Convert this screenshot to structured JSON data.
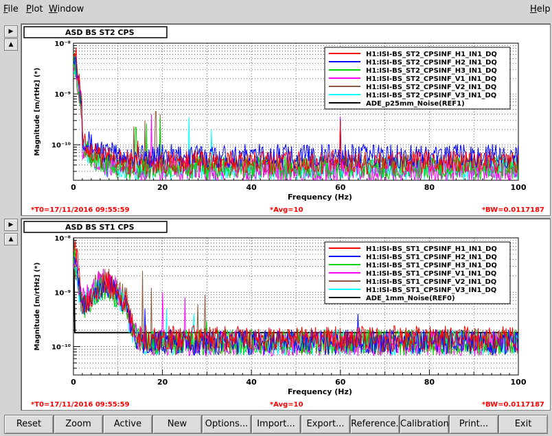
{
  "menu": {
    "file": "File",
    "plot": "Plot",
    "window": "Window",
    "help": "Help"
  },
  "side_buttons": {
    "expand": "▶",
    "collapse": "▲"
  },
  "colors": {
    "red": "#ff0000",
    "blue": "#0000ff",
    "green": "#00d200",
    "magenta": "#ff00ff",
    "brown": "#8b5a3c",
    "cyan": "#00ffff",
    "black": "#000000",
    "status_red": "#ff0000"
  },
  "footer_buttons": [
    "Reset",
    "Zoom",
    "Active",
    "New",
    "Options...",
    "Import...",
    "Export...",
    "Reference...",
    "Calibration...",
    "Print...",
    "Exit"
  ],
  "chart_data": [
    {
      "type": "line",
      "title": "ASD BS ST2 CPS",
      "xlabel": "Frequency (Hz)",
      "ylabel": "Magnitude [m/rtHz] (*)",
      "xlim": [
        0,
        100
      ],
      "ylim": [
        2e-11,
        1e-08
      ],
      "yscale": "log",
      "grid": true,
      "legend_position": "top-right",
      "x_ticks": [
        "0",
        "20",
        "40",
        "60",
        "80",
        "100"
      ],
      "y_ticks": [
        "10⁻⁸",
        "10⁻⁹",
        "10⁻¹⁰"
      ],
      "status": {
        "t0": "*T0=17/11/2016 09:55:59",
        "avg": "*Avg=10",
        "bw": "*BW=0.0117187"
      },
      "series": [
        {
          "name": "H1:ISI-BS_ST2_CPSINF_H1_IN1_DQ",
          "color_key": "red",
          "floor": 4.5e-11,
          "low_level": 1e-08,
          "peaks": [
            [
              5.5,
              9e-11
            ],
            [
              14.5,
              1.2e-10
            ],
            [
              60,
              3e-10
            ]
          ]
        },
        {
          "name": "H1:ISI-BS_ST2_CPSINF_H2_IN1_DQ",
          "color_key": "blue",
          "floor": 6e-11,
          "low_level": 8e-09,
          "peaks": [
            [
              5.5,
              1.1e-10
            ],
            [
              60,
              3.2e-10
            ]
          ]
        },
        {
          "name": "H1:ISI-BS_ST2_CPSINF_H3_IN1_DQ",
          "color_key": "green",
          "floor": 3.5e-11,
          "low_level": 6e-09,
          "peaks": [
            [
              14,
              2.2e-10
            ],
            [
              16.5,
              2.6e-10
            ],
            [
              19.5,
              3.4e-10
            ]
          ]
        },
        {
          "name": "H1:ISI-BS_ST2_CPSINF_V1_IN1_DQ",
          "color_key": "magenta",
          "floor": 3.2e-11,
          "low_level": 5e-09,
          "peaks": [
            [
              17.5,
              4e-10
            ],
            [
              60,
              3.6e-10
            ]
          ]
        },
        {
          "name": "H1:ISI-BS_ST2_CPSINF_V2_IN1_DQ",
          "color_key": "brown",
          "floor": 3.8e-11,
          "low_level": 5e-09,
          "peaks": [
            [
              13.5,
              2.3e-10
            ],
            [
              16,
              3e-10
            ],
            [
              18.5,
              4.5e-10
            ],
            [
              19.5,
              4e-10
            ]
          ]
        },
        {
          "name": "H1:ISI-BS_ST2_CPSINF_V3_IN1_DQ",
          "color_key": "cyan",
          "floor": 3.5e-11,
          "low_level": 5e-09,
          "peaks": [
            [
              26,
              3.5e-10
            ],
            [
              31,
              2e-10
            ]
          ]
        },
        {
          "name": "ADE_p25mm_Noise(REF1)",
          "color_key": "black",
          "constant": 1.2e-08
        }
      ]
    },
    {
      "type": "line",
      "title": "ASD BS ST1 CPS",
      "xlabel": "Frequency (Hz)",
      "ylabel": "Magnitude [m/rtHz] (*)",
      "xlim": [
        0,
        100
      ],
      "ylim": [
        3e-11,
        1e-08
      ],
      "yscale": "log",
      "grid": true,
      "legend_position": "top-right",
      "x_ticks": [
        "0",
        "20",
        "40",
        "60",
        "80",
        "100"
      ],
      "y_ticks": [
        "10⁻⁸",
        "10⁻⁹",
        "10⁻¹⁰"
      ],
      "status": {
        "t0": "*T0=17/11/2016 09:55:59",
        "avg": "*Avg=10",
        "bw": "*BW=0.0117187"
      },
      "series": [
        {
          "name": "H1:ISI-BS_ST1_CPSINF_H1_IN1_DQ",
          "color_key": "red",
          "floor": 1.4e-10,
          "low_level": 1e-08,
          "hump": 1.3e-09,
          "peaks": [
            [
              45,
              2e-10
            ],
            [
              60,
              2.2e-10
            ]
          ]
        },
        {
          "name": "H1:ISI-BS_ST1_CPSINF_H2_IN1_DQ",
          "color_key": "blue",
          "floor": 1.2e-10,
          "low_level": 8e-09,
          "hump": 1.2e-09,
          "peaks": [
            [
              16,
              5e-10
            ],
            [
              64,
              4e-10
            ]
          ]
        },
        {
          "name": "H1:ISI-BS_ST1_CPSINF_H3_IN1_DQ",
          "color_key": "green",
          "floor": 1.2e-10,
          "low_level": 6e-09,
          "hump": 1.1e-09,
          "peaks": [
            [
              30,
              3e-10
            ]
          ]
        },
        {
          "name": "H1:ISI-BS_ST1_CPSINF_V1_IN1_DQ",
          "color_key": "magenta",
          "floor": 1.15e-10,
          "low_level": 5e-09,
          "hump": 1.5e-09,
          "peaks": [
            [
              20,
              1e-09
            ],
            [
              25,
              8e-10
            ]
          ]
        },
        {
          "name": "H1:ISI-BS_ST1_CPSINF_V2_IN1_DQ",
          "color_key": "brown",
          "floor": 1.2e-10,
          "low_level": 5e-09,
          "hump": 1.6e-09,
          "peaks": [
            [
              15.5,
              2.5e-09
            ],
            [
              17.5,
              1.2e-09
            ],
            [
              28,
              6e-10
            ],
            [
              29.5,
              9e-10
            ]
          ]
        },
        {
          "name": "H1:ISI-BS_ST1_CPSINF_V3_IN1_DQ",
          "color_key": "cyan",
          "floor": 1.2e-10,
          "low_level": 5e-09,
          "hump": 1.1e-09,
          "peaks": [
            [
              21,
              5e-10
            ],
            [
              27,
              4e-10
            ]
          ]
        },
        {
          "name": "ADE_1mm_Noise(REF0)",
          "color_key": "black",
          "constant": 1.8e-10,
          "low_hold": 1.8e-10
        }
      ]
    }
  ]
}
